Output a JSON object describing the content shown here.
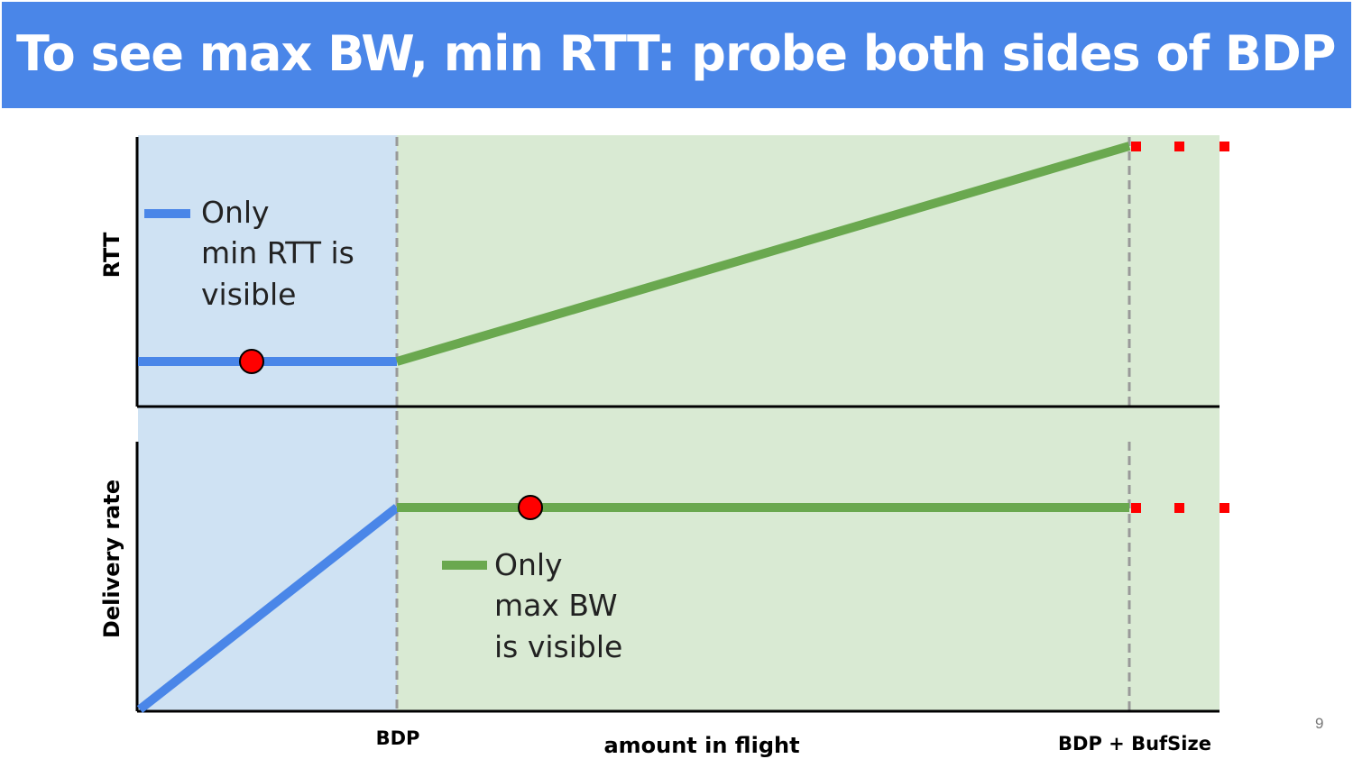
{
  "slide": {
    "title": "To see max BW, min RTT: probe both sides of BDP",
    "page_number": "9"
  },
  "diagram": {
    "y_axis_top": "RTT",
    "y_axis_bottom": "Delivery rate",
    "x_axis": "amount in flight",
    "x_tick_bdp": "BDP",
    "x_tick_bdp_bufsize": "BDP + BufSize",
    "legend_rtt": [
      "Only",
      "min RTT is",
      "visible"
    ],
    "legend_bw": [
      "Only",
      "max BW",
      "is visible"
    ]
  },
  "colors": {
    "title_bar": "#4a86e8",
    "blue_line": "#4a86e8",
    "green_line": "#6aa84f",
    "blue_region": "#cfe2f3",
    "green_region": "#d9ead3",
    "marker": "#ff0000"
  }
}
